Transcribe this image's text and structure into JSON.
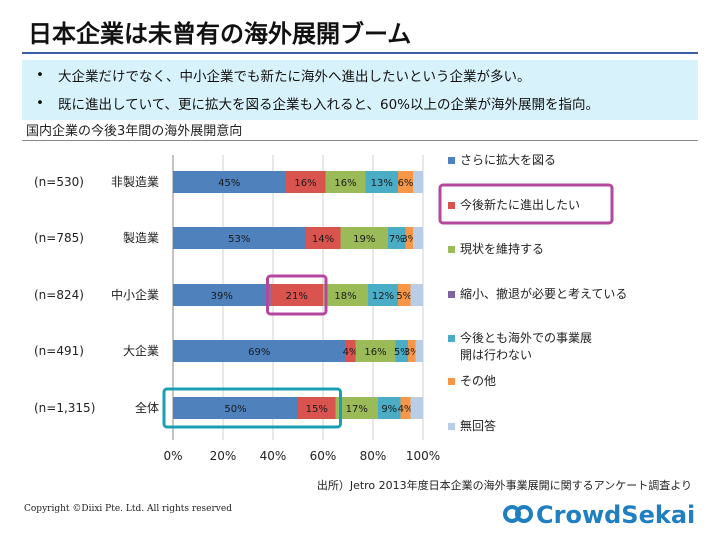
{
  "slide": {
    "title": "日本企業は未曾有の海外展開ブーム",
    "bullets": [
      "大企業だけでなく、中小企業でも新たに海外へ進出したいという企業が多い。",
      "既に進出していて、更に拡大を図る企業も入れると、60%以上の企業が海外展開を指向。"
    ],
    "bullet_symbol": "•",
    "source": "出所）Jetro 2013年度日本企業の海外事業展開に関するアンケート調査より",
    "copyright": "Copyright ©Diixi Pte. Ltd. All rights reserved",
    "logo_text": "CrowdSekai"
  },
  "chart_data": {
    "type": "bar",
    "orientation": "horizontal",
    "stacked": true,
    "title": "国内企業の今後3年間の海外展開意向",
    "categories": [
      "非製造業",
      "製造業",
      "中小企業",
      "大企業",
      "全体"
    ],
    "sample_sizes": [
      "(n=530)",
      "(n=785)",
      "(n=824)",
      "(n=491)",
      "(n=1,315)"
    ],
    "series": [
      {
        "name": "さらに拡大を図る",
        "color": "#4f81bd",
        "values": [
          45,
          53,
          39,
          69,
          50
        ],
        "labels": [
          "45%",
          "53%",
          "39%",
          "69%",
          "50%"
        ]
      },
      {
        "name": "今後新たに進出したい",
        "color": "#d9534f",
        "values": [
          16,
          14,
          21,
          4,
          15
        ],
        "labels": [
          "16%",
          "14%",
          "21%",
          "4%",
          "15%"
        ]
      },
      {
        "name": "現状を維持する",
        "color": "#9bbb59",
        "values": [
          16,
          19,
          18,
          16,
          17
        ],
        "labels": [
          "16%",
          "19%",
          "18%",
          "16%",
          "17%"
        ]
      },
      {
        "name": "縮小、撤退が必要と考えている",
        "color": "#8064a2",
        "values": [
          0,
          0,
          0,
          0,
          0
        ],
        "labels": [
          "",
          "",
          "",
          "",
          ""
        ]
      },
      {
        "name": "今後とも海外での事業展開は行わない",
        "color": "#4bacc6",
        "values": [
          13,
          7,
          12,
          5,
          9
        ],
        "labels": [
          "13%",
          "7%",
          "12%",
          "5%",
          "9%"
        ]
      },
      {
        "name": "その他",
        "color": "#f79646",
        "values": [
          6,
          3,
          5,
          3,
          4
        ],
        "labels": [
          "6%",
          "3%",
          "5%",
          "3%",
          "4%"
        ]
      },
      {
        "name": "無回答",
        "color": "#b9cde5",
        "values": [
          4,
          4,
          5,
          3,
          5
        ],
        "labels": [
          "",
          "",
          "",
          "",
          ""
        ]
      }
    ],
    "xlim": [
      0,
      100
    ],
    "x_ticks": [
      "0%",
      "20%",
      "40%",
      "60%",
      "80%",
      "100%"
    ],
    "grid": true,
    "legend_position": "right",
    "highlight_colors": {
      "pink": "#b5479f",
      "teal": "#1a9fb3"
    }
  }
}
